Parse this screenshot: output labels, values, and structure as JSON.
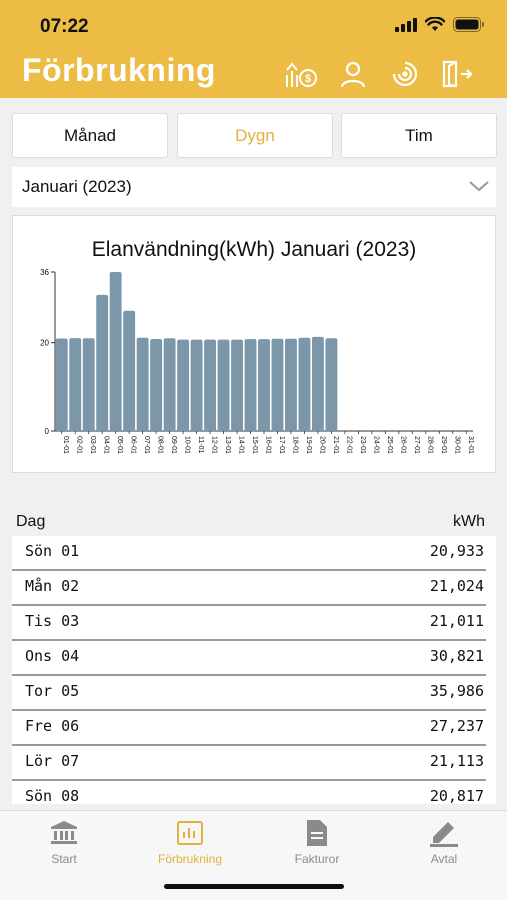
{
  "status_bar": {
    "time": "07:22"
  },
  "header": {
    "title": "Förbrukning",
    "icons": [
      "price-up-coin-icon",
      "user-icon",
      "location-swirl-icon",
      "logout-door-icon"
    ]
  },
  "segments": [
    {
      "label": "Månad",
      "active": false
    },
    {
      "label": "Dygn",
      "active": true
    },
    {
      "label": "Tim",
      "active": false
    }
  ],
  "period_select": {
    "value": "Januari (2023)"
  },
  "chart_data": {
    "type": "bar",
    "title": "Elanvändning(kWh) Januari (2023)",
    "xlabel": "",
    "ylabel": "",
    "ylim": [
      0,
      36
    ],
    "yticks": [
      0,
      20,
      36
    ],
    "grid": false,
    "categories": [
      "01-01",
      "02-01",
      "03-01",
      "04-01",
      "05-01",
      "06-01",
      "07-01",
      "08-01",
      "09-01",
      "10-01",
      "11-01",
      "12-01",
      "13-01",
      "14-01",
      "15-01",
      "16-01",
      "17-01",
      "18-01",
      "19-01",
      "20-01",
      "21-01",
      "22-01",
      "23-01",
      "24-01",
      "25-01",
      "26-01",
      "27-01",
      "28-01",
      "29-01",
      "30-01",
      "31-01"
    ],
    "values": [
      20.933,
      21.024,
      21.011,
      30.821,
      35.986,
      27.237,
      21.113,
      20.817,
      21.0,
      20.7,
      20.7,
      20.7,
      20.7,
      20.7,
      20.8,
      20.8,
      20.9,
      20.9,
      21.1,
      21.3,
      21.0,
      0,
      0,
      0,
      0,
      0,
      0,
      0,
      0,
      0,
      0
    ],
    "bar_color": "#7b97a9"
  },
  "table": {
    "col_day": "Dag",
    "col_value": "kWh",
    "rows": [
      {
        "day": "Sön 01",
        "value": "20,933"
      },
      {
        "day": "Mån 02",
        "value": "21,024"
      },
      {
        "day": "Tis 03",
        "value": "21,011"
      },
      {
        "day": "Ons 04",
        "value": "30,821"
      },
      {
        "day": "Tor 05",
        "value": "35,986"
      },
      {
        "day": "Fre 06",
        "value": "27,237"
      },
      {
        "day": "Lör 07",
        "value": "21,113"
      },
      {
        "day": "Sön 08",
        "value": "20,817"
      }
    ]
  },
  "tabbar": [
    {
      "label": "Start",
      "icon": "bank-icon",
      "active": false
    },
    {
      "label": "Förbrukning",
      "icon": "bar-chart-icon",
      "active": true
    },
    {
      "label": "Fakturor",
      "icon": "document-icon",
      "active": false
    },
    {
      "label": "Avtal",
      "icon": "pen-icon",
      "active": false
    }
  ],
  "colors": {
    "accent": "#ecbc45",
    "active_text": "#e2b13f",
    "bar": "#7b97a9"
  }
}
